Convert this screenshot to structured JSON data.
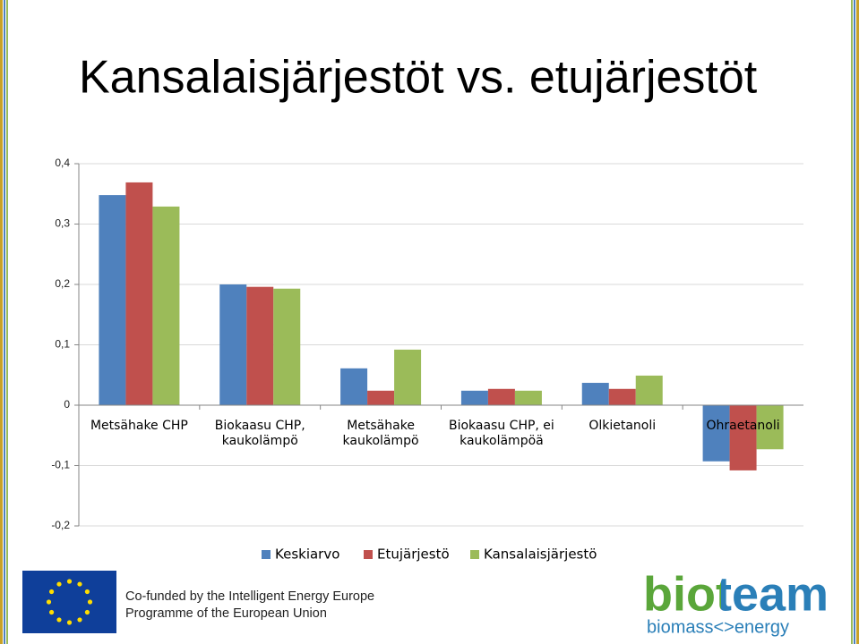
{
  "title": "Kansalaisjärjestöt vs. etujärjestöt",
  "chart_data": {
    "type": "bar",
    "categories": [
      "Metsähake CHP",
      "Biokaasu CHP, kaukolämpö",
      "Metsähake kaukolämpö",
      "Biokaasu CHP, ei kaukolämpöä",
      "Olkietanoli",
      "Ohraetanoli"
    ],
    "series": [
      {
        "name": "Keskiarvo",
        "color": "#4f81bd",
        "values": [
          0.348,
          0.2,
          0.061,
          0.024,
          0.037,
          -0.093
        ]
      },
      {
        "name": "Etujärjestö",
        "color": "#c0504d",
        "values": [
          0.369,
          0.196,
          0.024,
          0.027,
          0.027,
          -0.108
        ]
      },
      {
        "name": "Kansalaisjärjestö",
        "color": "#9bbb59",
        "values": [
          0.329,
          0.193,
          0.092,
          0.024,
          0.049,
          -0.073
        ]
      }
    ],
    "ylim": [
      -0.2,
      0.4
    ],
    "yticks": [
      {
        "value": -0.2,
        "label": "-0,2"
      },
      {
        "value": -0.1,
        "label": "-0,1"
      },
      0,
      {
        "value": 0.1,
        "label": "0,1"
      },
      {
        "value": 0.2,
        "label": "0,2"
      },
      {
        "value": 0.3,
        "label": "0,3"
      },
      {
        "value": 0.4,
        "label": "0,4"
      }
    ],
    "grid": true,
    "legend": "bottom"
  },
  "footer": {
    "funding": [
      "Co-funded by the Intelligent Energy Europe",
      "Programme of the European Union"
    ],
    "logo": "bioteam",
    "logo_tagline": "biomass<>energy"
  }
}
